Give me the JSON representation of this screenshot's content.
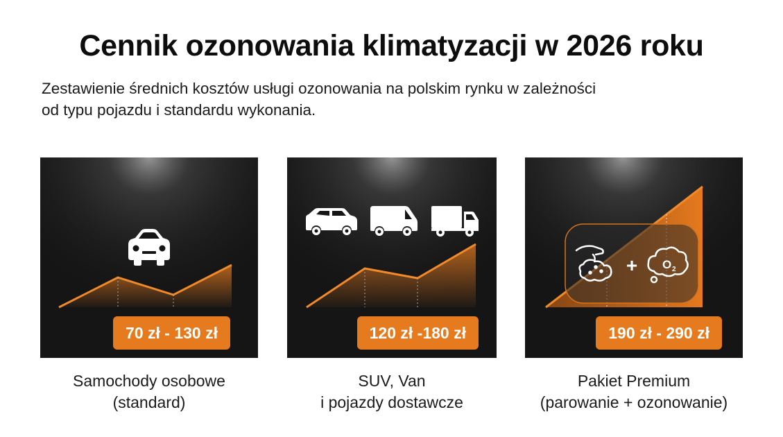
{
  "header": {
    "title": "Cennik ozonowania klimatyzacji w 2026 roku",
    "subtitle_line1": "Zestawienie średnich kosztów usługi ozonowania na polskim rynku w zależności",
    "subtitle_line2": "od typu pojazdu i standardu wykonania."
  },
  "cards": [
    {
      "price": "70 zł - 130 zł",
      "label_line1": "Samochody osobowe",
      "label_line2": "(standard)",
      "icons": [
        "car-icon"
      ]
    },
    {
      "price": "120 zł -180 zł",
      "label_line1": "SUV, Van",
      "label_line2": "i pojazdy dostawcze",
      "icons": [
        "suv-icon",
        "van-icon",
        "truck-icon"
      ]
    },
    {
      "price": "190 zł - 290 zł",
      "label_line1": "Pakiet Premium",
      "label_line2": "(parowanie + ozonowanie)",
      "icons": [
        "steam-cleaning-icon",
        "ozone-icon"
      ]
    }
  ],
  "colors": {
    "accent": "#e57a1e",
    "card_bg": "#151515",
    "text": "#111111"
  }
}
